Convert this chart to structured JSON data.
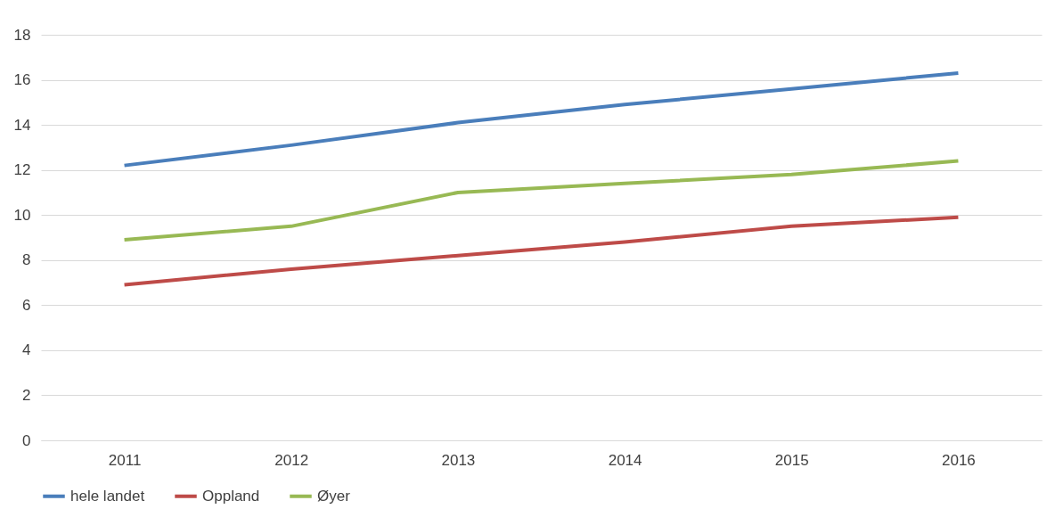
{
  "chart_data": {
    "type": "line",
    "categories": [
      "2011",
      "2012",
      "2013",
      "2014",
      "2015",
      "2016"
    ],
    "series": [
      {
        "name": "hele landet",
        "color": "#4a7ebb",
        "values": [
          12.2,
          13.1,
          14.1,
          14.9,
          15.6,
          16.3
        ]
      },
      {
        "name": "Oppland",
        "color": "#be4b48",
        "values": [
          6.9,
          7.6,
          8.2,
          8.8,
          9.5,
          9.9
        ]
      },
      {
        "name": "Øyer",
        "color": "#98b954",
        "values": [
          8.9,
          9.5,
          11.0,
          11.4,
          11.8,
          12.4
        ]
      }
    ],
    "ylim": [
      0,
      18
    ],
    "yticks": [
      0,
      2,
      4,
      6,
      8,
      10,
      12,
      14,
      16,
      18
    ],
    "grid": "y",
    "legend": "bottom",
    "marker": "none",
    "line_style": "solid"
  }
}
